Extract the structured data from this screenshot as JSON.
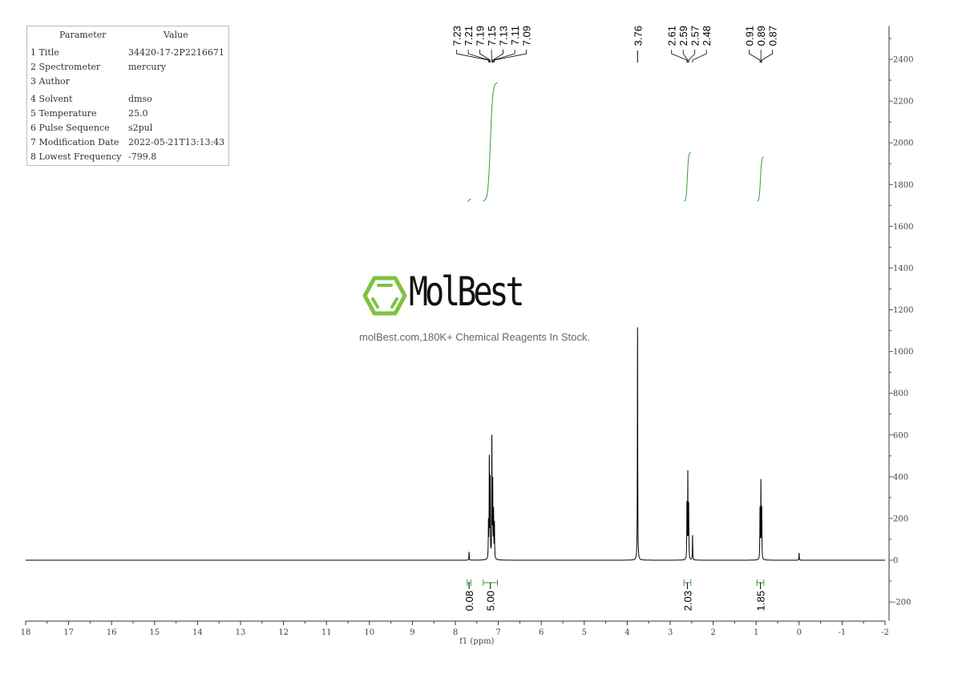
{
  "parameters": {
    "header": [
      "Parameter",
      "Value"
    ],
    "rows": [
      [
        "1 Title",
        "34420-17-2P2216671"
      ],
      [
        "2 Spectrometer",
        "mercury"
      ],
      [
        "3 Author",
        ""
      ],
      [
        "4 Solvent",
        "dmso"
      ],
      [
        "5 Temperature",
        "25.0"
      ],
      [
        "6 Pulse Sequence",
        "s2pul"
      ],
      [
        "7 Modification Date",
        "2022-05-21T13:13:43"
      ],
      [
        "8 Lowest Frequency",
        "-799.8"
      ]
    ]
  },
  "watermark": {
    "brand": "MolBest",
    "tagline": "molBest.com,180K+ Chemical Reagents In Stock.",
    "brand_color": "#7dc242"
  },
  "chart_data": {
    "type": "line",
    "xlabel": "f1 (ppm)",
    "xlim": [
      18,
      -2
    ],
    "x_reversed": true,
    "ylim": [
      -290,
      2560
    ],
    "x_ticks": [
      18,
      17,
      16,
      15,
      14,
      13,
      12,
      11,
      10,
      9,
      8,
      7,
      6,
      5,
      4,
      3,
      2,
      1,
      0,
      -1,
      -2
    ],
    "y_ticks": [
      -200,
      0,
      200,
      400,
      600,
      800,
      1000,
      1200,
      1400,
      1600,
      1800,
      2000,
      2200,
      2400
    ],
    "y_axis_side": "right",
    "grid": false,
    "line_color": "#000000",
    "integral_color": "#3a9a3a",
    "peaks": [
      {
        "ppm": 7.68,
        "height": 40
      },
      {
        "ppm": 7.23,
        "height": 170
      },
      {
        "ppm": 7.21,
        "height": 480
      },
      {
        "ppm": 7.19,
        "height": 380
      },
      {
        "ppm": 7.15,
        "height": 580
      },
      {
        "ppm": 7.13,
        "height": 360
      },
      {
        "ppm": 7.11,
        "height": 220
      },
      {
        "ppm": 7.09,
        "height": 170
      },
      {
        "ppm": 3.76,
        "height": 1130
      },
      {
        "ppm": 2.61,
        "height": 260
      },
      {
        "ppm": 2.59,
        "height": 410
      },
      {
        "ppm": 2.57,
        "height": 260
      },
      {
        "ppm": 2.48,
        "height": 120
      },
      {
        "ppm": 0.91,
        "height": 240
      },
      {
        "ppm": 0.89,
        "height": 370
      },
      {
        "ppm": 0.87,
        "height": 240
      },
      {
        "ppm": 0.0,
        "height": 35
      }
    ],
    "peak_label_groups": [
      [
        "7.23",
        "7.21",
        "7.19",
        "7.15",
        "7.13",
        "7.11",
        "7.09"
      ],
      [
        "3.76"
      ],
      [
        "2.61",
        "2.59",
        "2.57",
        "2.48"
      ],
      [
        "0.91",
        "0.89",
        "0.87"
      ]
    ],
    "integrals": [
      {
        "from": 7.72,
        "to": 7.64,
        "value": "0.08",
        "curve_start": 1720,
        "curve_end": 1730
      },
      {
        "from": 7.35,
        "to": 7.02,
        "value": "5.00",
        "curve_start": 1720,
        "curve_end": 2289
      },
      {
        "from": 2.68,
        "to": 2.52,
        "value": "2.03",
        "curve_start": 1720,
        "curve_end": 1955
      },
      {
        "from": 0.98,
        "to": 0.82,
        "value": "1.85",
        "curve_start": 1720,
        "curve_end": 1932
      }
    ]
  }
}
